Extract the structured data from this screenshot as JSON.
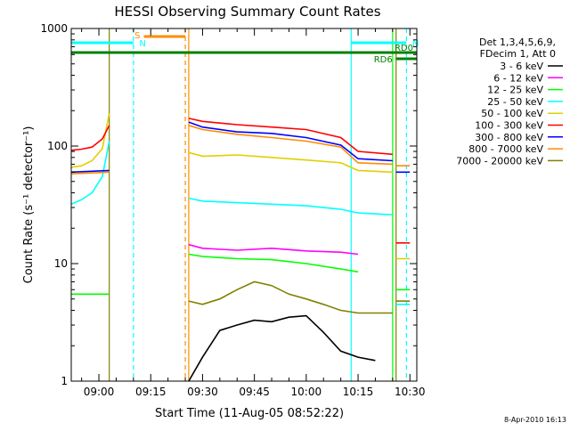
{
  "chart_data": {
    "type": "line",
    "title": "HESSI Observing Summary Count Rates",
    "xlabel": "Start Time (11-Aug-05 08:52:22)",
    "ylabel": "Count Rate (s⁻¹ detector⁻¹)",
    "yscale": "log",
    "ylim": [
      1,
      1000
    ],
    "xlim": [
      "08:52",
      "10:32"
    ],
    "x_ticks": [
      "09:00",
      "09:15",
      "09:30",
      "09:45",
      "10:00",
      "10:15",
      "10:30"
    ],
    "y_ticks": [
      "1",
      "10",
      "100",
      "1000"
    ],
    "legend_header": [
      "Det 1,3,4,5,6,9,",
      "FDecim 1, Att 0"
    ],
    "legend_position": "right",
    "timestamp": "8-Apr-2010 16:13",
    "flags": [
      {
        "name": "S",
        "color": "#ff8c00",
        "start": "09:13",
        "end": "09:25"
      },
      {
        "name": "N",
        "color": "#00ffff",
        "start": "08:52",
        "end": "09:10"
      },
      {
        "name": "N",
        "color": "#00ffff",
        "start": "10:13",
        "end": "10:29"
      },
      {
        "name": "RD0",
        "color": "#008000",
        "start": "08:52",
        "end": "10:32"
      },
      {
        "name": "RD6",
        "color": "#008000",
        "start": "10:26",
        "end": "10:32"
      }
    ],
    "vlines": [
      {
        "time": "09:03",
        "color": "#808000",
        "style": "solid"
      },
      {
        "time": "09:10",
        "color": "#00ffff",
        "style": "dashed"
      },
      {
        "time": "09:25",
        "color": "#ff8c00",
        "style": "dashed"
      },
      {
        "time": "09:26",
        "color": "#ff8c00",
        "style": "solid"
      },
      {
        "time": "10:13",
        "color": "#00ffff",
        "style": "solid"
      },
      {
        "time": "10:25",
        "color": "#00ff00",
        "style": "solid"
      },
      {
        "time": "10:26",
        "color": "#808000",
        "style": "solid"
      },
      {
        "time": "10:29",
        "color": "#00ffff",
        "style": "dashed"
      }
    ],
    "series": [
      {
        "name": "3 - 6 keV",
        "color": "#000000",
        "segments": [
          {
            "x": [
              "09:26",
              "09:30",
              "09:35",
              "09:40",
              "09:45",
              "09:50",
              "09:55",
              "10:00",
              "10:05",
              "10:10",
              "10:15",
              "10:20"
            ],
            "y": [
              1.0,
              1.6,
              2.7,
              3.0,
              3.3,
              3.2,
              3.5,
              3.6,
              2.6,
              1.8,
              1.6,
              1.5
            ]
          }
        ]
      },
      {
        "name": "6 - 12 keV",
        "color": "#ff00ff",
        "segments": [
          {
            "x": [
              "09:26",
              "09:30",
              "09:40",
              "09:50",
              "10:00",
              "10:10",
              "10:15"
            ],
            "y": [
              14.5,
              13.5,
              13.0,
              13.5,
              12.8,
              12.5,
              12.0
            ]
          }
        ]
      },
      {
        "name": "12 - 25 keV",
        "color": "#00ff00",
        "segments": [
          {
            "x": [
              "08:52",
              "09:03"
            ],
            "y": [
              5.5,
              5.5
            ]
          },
          {
            "x": [
              "09:26",
              "09:30",
              "09:40",
              "09:50",
              "10:00",
              "10:10",
              "10:15"
            ],
            "y": [
              12.0,
              11.5,
              11.0,
              10.8,
              10.0,
              9.0,
              8.5
            ]
          },
          {
            "x": [
              "10:26",
              "10:30"
            ],
            "y": [
              6.0,
              6.0
            ]
          }
        ]
      },
      {
        "name": "25 - 50 keV",
        "color": "#00ffff",
        "segments": [
          {
            "x": [
              "08:52",
              "08:55",
              "08:58",
              "09:01",
              "09:03"
            ],
            "y": [
              32,
              35,
              40,
              55,
              110
            ]
          },
          {
            "x": [
              "09:26",
              "09:30",
              "09:40",
              "09:50",
              "10:00",
              "10:10",
              "10:15",
              "10:25"
            ],
            "y": [
              36,
              34,
              33,
              32,
              31,
              29,
              27,
              26
            ]
          },
          {
            "x": [
              "10:26",
              "10:30"
            ],
            "y": [
              4.5,
              4.5
            ]
          }
        ]
      },
      {
        "name": "50 - 100 keV",
        "color": "#e0d000",
        "segments": [
          {
            "x": [
              "08:52",
              "08:55",
              "08:58",
              "09:01",
              "09:03"
            ],
            "y": [
              66,
              68,
              75,
              95,
              190
            ]
          },
          {
            "x": [
              "09:26",
              "09:30",
              "09:40",
              "09:50",
              "10:00",
              "10:10",
              "10:15",
              "10:25"
            ],
            "y": [
              88,
              82,
              84,
              80,
              76,
              72,
              62,
              60
            ]
          },
          {
            "x": [
              "10:26",
              "10:30"
            ],
            "y": [
              11,
              11
            ]
          }
        ]
      },
      {
        "name": "100 - 300 keV",
        "color": "#ff0000",
        "segments": [
          {
            "x": [
              "08:52",
              "08:55",
              "08:58",
              "09:01",
              "09:03"
            ],
            "y": [
              92,
              94,
              98,
              115,
              150
            ]
          },
          {
            "x": [
              "09:26",
              "09:30",
              "09:40",
              "09:50",
              "10:00",
              "10:10",
              "10:15",
              "10:25"
            ],
            "y": [
              172,
              162,
              152,
              145,
              138,
              118,
              90,
              85
            ]
          },
          {
            "x": [
              "10:26",
              "10:30"
            ],
            "y": [
              15,
              15
            ]
          }
        ]
      },
      {
        "name": "300 - 800 keV",
        "color": "#0000ff",
        "segments": [
          {
            "x": [
              "08:52",
              "09:03"
            ],
            "y": [
              60,
              62
            ]
          },
          {
            "x": [
              "09:26",
              "09:30",
              "09:40",
              "09:50",
              "10:00",
              "10:10",
              "10:15",
              "10:25"
            ],
            "y": [
              160,
              145,
              132,
              128,
              118,
              102,
              78,
              75
            ]
          },
          {
            "x": [
              "10:26",
              "10:30"
            ],
            "y": [
              60,
              60
            ]
          }
        ]
      },
      {
        "name": "800 - 7000 keV",
        "color": "#ff8c00",
        "segments": [
          {
            "x": [
              "08:52",
              "09:03"
            ],
            "y": [
              58,
              60
            ]
          },
          {
            "x": [
              "09:26",
              "09:30",
              "09:40",
              "09:50",
              "10:00",
              "10:10",
              "10:15",
              "10:25"
            ],
            "y": [
              150,
              138,
              126,
              118,
              110,
              98,
              72,
              70
            ]
          },
          {
            "x": [
              "10:26",
              "10:30"
            ],
            "y": [
              68,
              68
            ]
          }
        ]
      },
      {
        "name": "7000 - 20000 keV",
        "color": "#808000",
        "segments": [
          {
            "x": [
              "09:26",
              "09:30",
              "09:35",
              "09:40",
              "09:45",
              "09:50",
              "09:55",
              "10:00",
              "10:05",
              "10:10",
              "10:15",
              "10:25"
            ],
            "y": [
              4.8,
              4.5,
              5.0,
              6.0,
              7.0,
              6.5,
              5.5,
              5.0,
              4.5,
              4.0,
              3.8,
              3.8
            ]
          },
          {
            "x": [
              "10:26",
              "10:30"
            ],
            "y": [
              4.8,
              4.8
            ]
          }
        ]
      }
    ]
  }
}
